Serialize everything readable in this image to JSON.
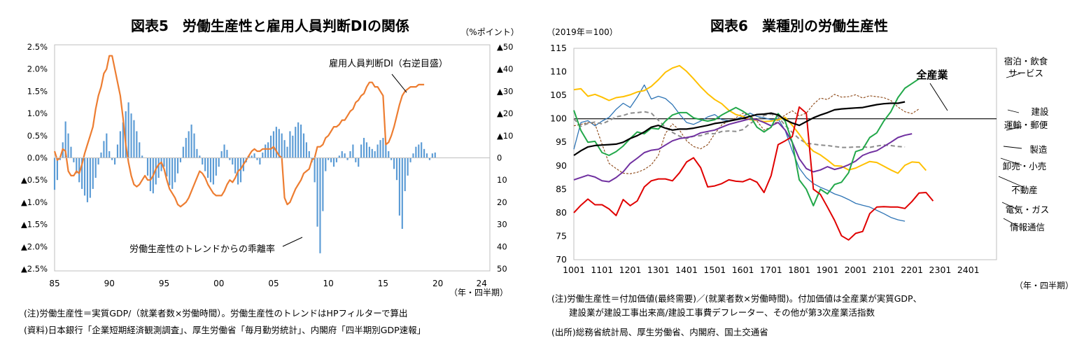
{
  "left": {
    "title": "図表5　労働生産性と雇用人員判断DIの関係",
    "unit": "（%ポイント）",
    "xlabel": "（年・四半期）",
    "annot_di": "雇用人員判断DI（右逆目盛）",
    "annot_bar": "労働生産性のトレンドからの乖離率",
    "note1": "(注)労働生産性＝実質GDP/（就業者数×労働時間）。労働生産性のトレンドはHPフィルターで算出",
    "note2": "(資料)日本銀行「企業短期経済観測調査」、厚生労働省「毎月勤労統計」、内閣府「四半期別GDP速報」"
  },
  "right": {
    "title": "図表6　業種別の労働生産性",
    "unit": "（2019年＝100）",
    "xlabel": "（年・四半期）",
    "note1": "(注)労働生産性＝付加価値(最終需要)／(就業者数×労働時間)。付加価値は全産業が実質GDP、",
    "note2": "　　建設業が建設工事出来高/建設工事費デフレーター、その他が第3次産業活指数",
    "note3": "(出所)総務省統計局、厚生労働省、内閣府、国土交通省"
  },
  "chart_data": [
    {
      "type": "bar",
      "title": "図表5　労働生産性と雇用人員判断DIの関係",
      "xlabel": "（年・四半期）",
      "x_range": [
        1985,
        2024.75
      ],
      "x_ticks": [
        "85",
        "90",
        "95",
        "00",
        "05",
        "10",
        "15",
        "20",
        "24"
      ],
      "x_tick_years": [
        1985,
        1990,
        1995,
        2000,
        2005,
        2010,
        2015,
        2020,
        2024
      ],
      "y_left": {
        "ylim": [
          -2.5,
          2.5
        ],
        "ticks": [
          "2.5%",
          "2.0%",
          "1.5%",
          "1.0%",
          "0.5%",
          "0.0%",
          "▲0.5%",
          "▲1.0%",
          "▲1.5%",
          "▲2.0%",
          "▲2.5%"
        ]
      },
      "y_right": {
        "ylim": [
          -50,
          50
        ],
        "inverted": true,
        "ticks": [
          "▲50",
          "▲40",
          "▲30",
          "▲20",
          "▲10",
          "0",
          "10",
          "20",
          "30",
          "40",
          "50"
        ]
      },
      "bar_color": "#5b9bd5",
      "line_color": "#ed7d31",
      "series": [
        {
          "name": "労働生産性のトレンドからの乖離率",
          "axis": "left",
          "x_start": 1985.0,
          "step": 0.25,
          "values": [
            -0.72,
            -0.5,
            -0.05,
            0.35,
            0.82,
            0.55,
            0.25,
            -0.1,
            -0.35,
            -0.55,
            -0.7,
            -0.85,
            -1.0,
            -0.9,
            -0.7,
            -0.45,
            -0.15,
            0.12,
            0.38,
            0.55,
            0.15,
            -0.05,
            -0.15,
            0.3,
            0.6,
            0.8,
            1.05,
            1.25,
            1.0,
            0.85,
            0.6,
            0.35,
            0.05,
            0.0,
            -0.4,
            -0.75,
            -0.8,
            -0.6,
            -0.45,
            -0.3,
            -0.2,
            -0.42,
            -0.62,
            -0.7,
            -0.55,
            -0.35,
            -0.1,
            0.25,
            0.45,
            0.6,
            0.75,
            0.55,
            0.2,
            0.05,
            -0.15,
            -0.3,
            -0.45,
            -0.55,
            -0.6,
            -0.4,
            -0.2,
            0.15,
            0.3,
            0.18,
            -0.05,
            -0.15,
            -0.35,
            -0.6,
            -0.55,
            -0.3,
            -0.1,
            0.05,
            0.05,
            0.1,
            -0.05,
            -0.15,
            0.12,
            0.3,
            0.35,
            0.5,
            0.6,
            0.7,
            0.65,
            0.55,
            0.4,
            0.25,
            0.6,
            0.5,
            0.7,
            0.8,
            0.75,
            0.55,
            0.35,
            0.15,
            -0.1,
            -0.55,
            -1.55,
            -2.15,
            -1.2,
            -0.3,
            -0.05,
            -0.1,
            -0.2,
            -0.1,
            0.05,
            0.15,
            0.1,
            -0.05,
            0.15,
            0.3,
            -0.1,
            -0.2,
            0.3,
            0.45,
            0.35,
            0.25,
            0.2,
            0.15,
            0.3,
            0.4,
            0.45,
            0.35,
            0.15,
            -0.05,
            -0.25,
            -0.5,
            -1.3,
            -1.6,
            -0.75,
            -0.4,
            -0.1,
            0.1,
            0.25,
            0.3,
            0.35,
            0.2,
            0.1,
            -0.05,
            0.1,
            0.12
          ]
        },
        {
          "name": "雇用人員判断DI（右逆目盛）",
          "axis": "right",
          "x_start": 1985.0,
          "step": 0.25,
          "values": [
            -3,
            1,
            0,
            -4,
            -3,
            6,
            8,
            8,
            6,
            7,
            3,
            -2,
            -6,
            -10,
            -14,
            -22,
            -28,
            -32,
            -38,
            -40,
            -46,
            -46,
            -40,
            -34,
            -28,
            -18,
            -6,
            2,
            8,
            12,
            13,
            12,
            10,
            8,
            10,
            10,
            8,
            5,
            3,
            2,
            5,
            10,
            14,
            16,
            18,
            21,
            22,
            21,
            20,
            18,
            15,
            12,
            9,
            6,
            7,
            9,
            12,
            14,
            16,
            17,
            17,
            17,
            15,
            12,
            10,
            11,
            9,
            6,
            5,
            3,
            1,
            -1,
            -3,
            -4,
            -3,
            -3,
            -4,
            -4,
            -4,
            -4,
            -5,
            -3,
            -1,
            0,
            18,
            21,
            20,
            17,
            14,
            12,
            10,
            7,
            6,
            5,
            1,
            0,
            -5,
            -5,
            -6,
            -9,
            -10,
            -12,
            -14,
            -14,
            -15,
            -17,
            -17,
            -19,
            -21,
            -22,
            -25,
            -26,
            -28,
            -29,
            -32,
            -34,
            -34,
            -32,
            -32,
            -30,
            -28,
            -6,
            -7,
            -10,
            -14,
            -19,
            -24,
            -28,
            -30,
            -31,
            -32,
            -32,
            -32,
            -33,
            -33,
            -33
          ]
        }
      ],
      "annotations": [
        "雇用人員判断DI（右逆目盛）",
        "労働生産性のトレンドからの乖離率"
      ]
    },
    {
      "type": "line",
      "title": "図表6　業種別の労働生産性",
      "ylabel": "（2019年＝100）",
      "xlabel": "（年・四半期）",
      "ylim": [
        70,
        115
      ],
      "y_ticks": [
        70,
        75,
        80,
        85,
        90,
        95,
        100,
        105,
        110,
        115
      ],
      "x_ticks": [
        "1001",
        "1101",
        "1201",
        "1301",
        "1401",
        "1501",
        "1601",
        "1701",
        "1801",
        "1901",
        "2001",
        "2101",
        "2201",
        "2301",
        "2401"
      ],
      "x_first": "2010Q1",
      "n_points": 60,
      "reference_line": 100,
      "series": [
        {
          "name": "全産業",
          "color": "#000000",
          "width": 2.2,
          "dash": "",
          "values": [
            92.2,
            93.2,
            94,
            94.3,
            94.4,
            94.5,
            94.6,
            95,
            95.8,
            96.4,
            97.2,
            98.2,
            98.6,
            98,
            97.6,
            97.8,
            97.8,
            98,
            98.3,
            98.6,
            99,
            99.2,
            99.5,
            99.8,
            100.1,
            100.5,
            100.9,
            101,
            101.2,
            100.8,
            99.8,
            99.1,
            98.6,
            99.4,
            100.2,
            100.8,
            101.3,
            101.9,
            102.1,
            102.2,
            102.3,
            102.4,
            102.7,
            103,
            103.2,
            103.3,
            103.3,
            103.6
          ]
        },
        {
          "name": "宿泊・飲食サービス",
          "color": "#22a84a",
          "width": 2,
          "dash": "",
          "values": [
            101.8,
            97.5,
            95,
            95.2,
            92.8,
            92.2,
            93,
            94.2,
            95.8,
            97.2,
            96.8,
            98,
            97.8,
            99.5,
            100.8,
            101.3,
            101.3,
            100.2,
            99.8,
            99.5,
            99.8,
            100.8,
            101.6,
            102.4,
            101.6,
            100.6,
            98.2,
            97.2,
            98.2,
            101.1,
            99.5,
            95,
            87,
            85,
            81.5,
            85,
            84,
            86,
            86.5,
            88.5,
            93,
            93.5,
            96,
            97,
            99.5,
            101.5,
            104.5,
            106.5,
            107.5,
            108.5
          ]
        },
        {
          "name": "建設",
          "color": "#ed7d31",
          "width": 0,
          "dash": "",
          "values": []
        },
        {
          "name": "運輸・郵便",
          "color": "#7030a0",
          "width": 2,
          "dash": "",
          "values": [
            87,
            87.5,
            88,
            87.6,
            86.8,
            86.6,
            87.5,
            88.7,
            90.5,
            91.6,
            92.8,
            93.3,
            93.5,
            94.4,
            95.3,
            95.8,
            96,
            96.3,
            97,
            97.3,
            97.6,
            98.2,
            98.8,
            99.2,
            99.6,
            100,
            99.8,
            99.2,
            98.5,
            99.2,
            97.6,
            95,
            91.5,
            89.4,
            88.7,
            89.1,
            89.8,
            89.2,
            89.6,
            90.2,
            91,
            92.2,
            92.8,
            93.2,
            94.1,
            95,
            96,
            96.5,
            96.8
          ]
        },
        {
          "name": "製造",
          "color": "#8c8c8c",
          "width": 2,
          "dash": "6 4",
          "values": [
            100,
            98.4,
            99,
            99.3,
            98.9,
            99.6,
            100.4,
            100.7,
            101.2,
            101.3,
            101.5,
            101.2,
            99.7,
            98.2,
            97.1,
            96.3,
            95.8,
            96.3,
            96.4,
            96.9,
            96.8,
            97.3,
            97.4,
            97.3,
            97.7,
            99,
            99.8,
            100.7,
            101,
            100.4,
            98.6,
            97.1,
            95.7,
            94.8,
            94.6,
            94.4,
            94.3,
            94.1,
            93.9,
            93.9,
            94,
            94,
            93.9,
            94.2,
            94.4,
            94.3,
            94.1,
            94
          ]
        },
        {
          "name": "卸売・小売",
          "color": "#2e74b5",
          "width": 1.3,
          "dash": "",
          "values": [
            93.5,
            99.2,
            99.6,
            98.5,
            99.5,
            100.3,
            102,
            103.3,
            102.4,
            104.6,
            107.2,
            104.2,
            104.8,
            104.3,
            103,
            101,
            99.2,
            98.8,
            99.5,
            100.4,
            100.9,
            99.8,
            99.6,
            99.9,
            100.5,
            101.2,
            100.5,
            100.2,
            99.8,
            100,
            97.5,
            93.2,
            89.5,
            87.5,
            86.2,
            85.4,
            84.8,
            84,
            83.5,
            82.8,
            82,
            81.6,
            81.2,
            80.5,
            79.8,
            79,
            78.5,
            78.2
          ]
        },
        {
          "name": "不動産",
          "color": "#ffc000",
          "width": 2,
          "dash": "",
          "values": [
            106.2,
            106.4,
            104.8,
            105.2,
            104.6,
            103.9,
            104.5,
            104.7,
            105.1,
            105.7,
            106,
            106.9,
            108.3,
            109.9,
            110.8,
            111.3,
            110.1,
            108.5,
            106.8,
            105.3,
            104.1,
            103.2,
            101.8,
            100.9,
            100.5,
            99.8,
            99.7,
            99.4,
            99.5,
            99.8,
            100.3,
            98.6,
            96.7,
            94.6,
            93.1,
            92.3,
            91.2,
            90,
            89.9,
            89.1,
            89.5,
            90.2,
            90.9,
            90.7,
            89.9,
            89.1,
            88.4,
            90.1,
            90.8,
            90.7,
            89
          ]
        },
        {
          "name": "電気・ガス",
          "color": "#e00000",
          "width": 2,
          "dash": "",
          "values": [
            80,
            81.6,
            82.9,
            81.7,
            81.7,
            80.8,
            79.4,
            82.8,
            81.5,
            82.5,
            85.5,
            86.8,
            87.2,
            87.2,
            86.8,
            88.5,
            90.8,
            91.7,
            89.6,
            85.5,
            85.7,
            86.2,
            87,
            86.7,
            86.6,
            87.2,
            86.5,
            84.3,
            87.9,
            94.5,
            95.3,
            96.2,
            102.5,
            101.2,
            85,
            83.9,
            81.2,
            78.4,
            75.1,
            74.2,
            75.6,
            76,
            79.8,
            81.2,
            81.3,
            81.2,
            81.2,
            80.9,
            82.4,
            84.2,
            84.3,
            82.5
          ]
        },
        {
          "name": "情報通信",
          "color": "#8b4513",
          "width": 1.1,
          "dash": "3 2",
          "values": [
            98.5,
            98.8,
            99.2,
            98.9,
            94.6,
            90.5,
            89.4,
            88.4,
            88.3,
            88.6,
            89.2,
            90.2,
            92.2,
            96.9,
            98.9,
            97.6,
            95.3,
            94.1,
            93.6,
            94.5,
            96.8,
            98.7,
            99.5,
            100.2,
            101.2,
            100.6,
            99.5,
            97.6,
            98.2,
            99.7,
            100.8,
            101.7,
            100.6,
            101.2,
            103.1,
            104.4,
            104.1,
            105.2,
            104.6,
            104.7,
            105.1,
            104.4,
            104.9,
            104.7,
            104.5,
            103.9,
            102.5,
            101.5,
            101.1,
            102.1
          ]
        }
      ],
      "legend_labels": [
        "宿泊・飲食",
        "サービス",
        "建設",
        "運輸・郵便",
        "製造",
        "卸売・小売",
        "不動産",
        "電気・ガス",
        "情報通信"
      ],
      "callout": "全産業"
    }
  ]
}
